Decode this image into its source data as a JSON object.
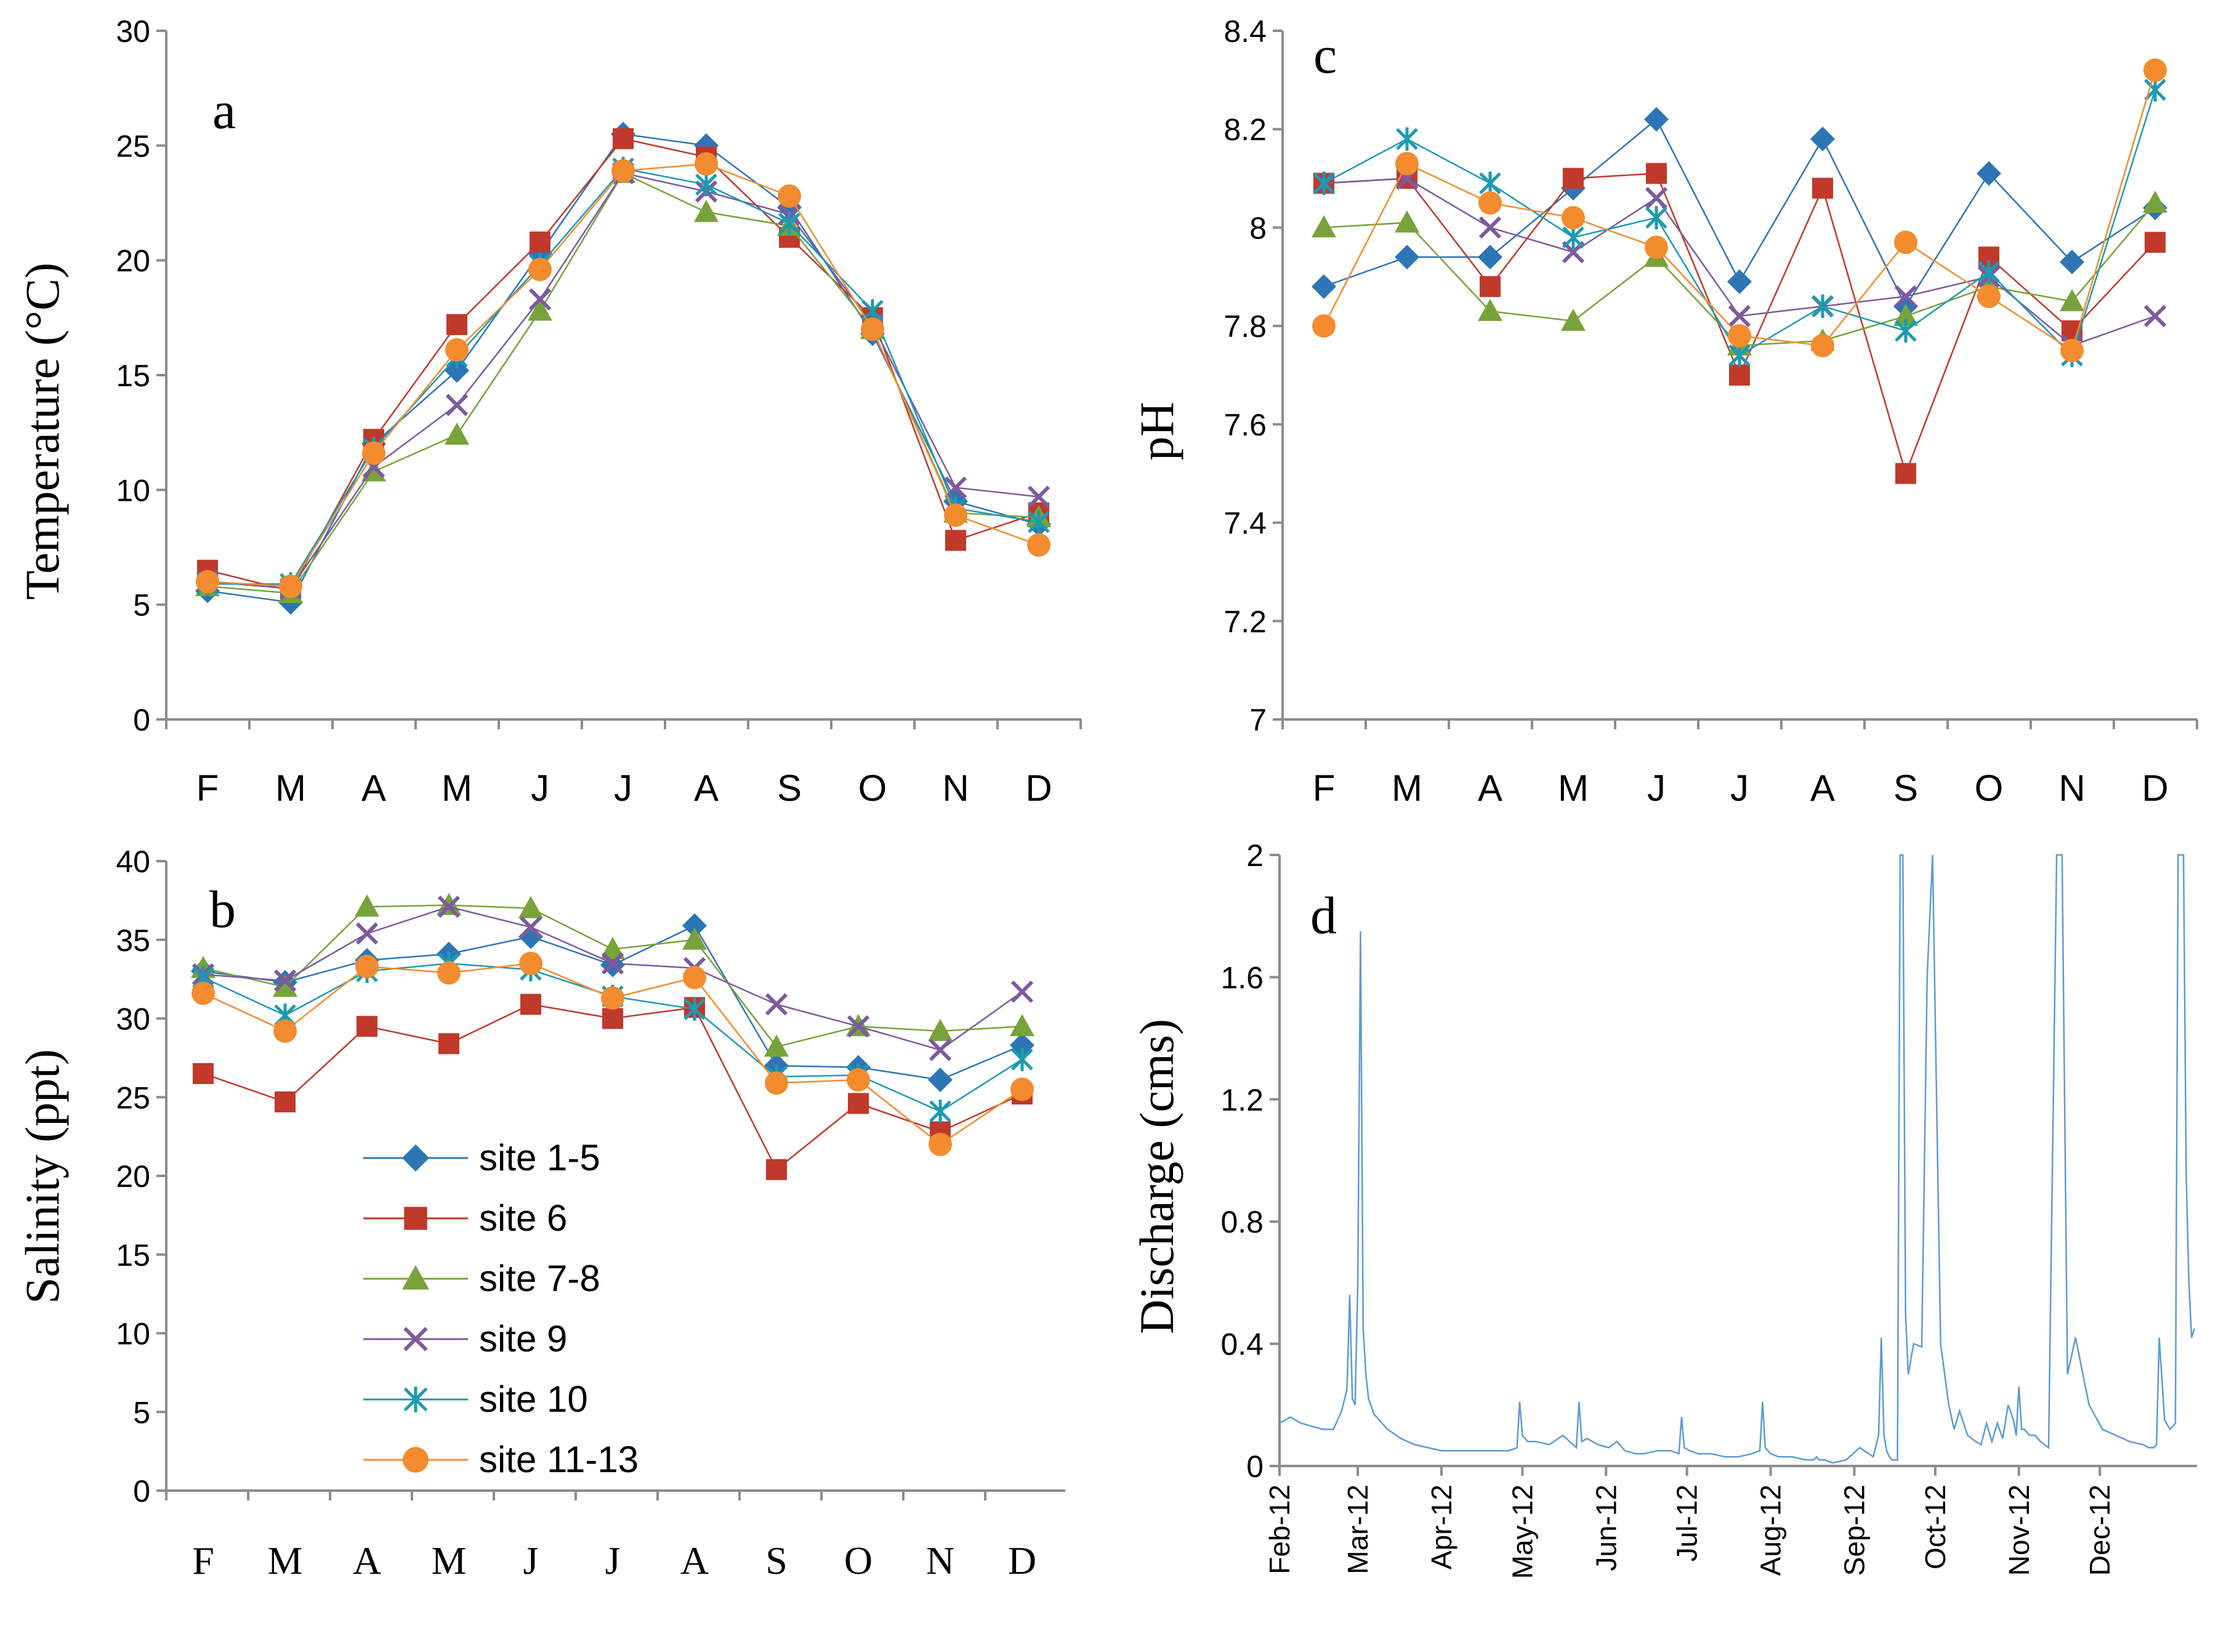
{
  "colors": {
    "site 1-5": "#2e75b6",
    "site 6": "#c0392b",
    "site 7-8": "#77a33a",
    "site 9": "#7d5a9e",
    "site 10": "#1b9ab2",
    "site 11-13": "#f28c2e"
  },
  "markers": {
    "site 1-5": "diamond",
    "site 6": "square",
    "site 7-8": "triangle",
    "site 9": "cross",
    "site 10": "star",
    "site 11-13": "circle"
  },
  "chart_data": [
    {
      "panel": "a",
      "type": "line",
      "letter": "a",
      "ylabel": "Temperature  (°C)",
      "ylim": [
        0,
        30
      ],
      "yticks": [
        "0",
        "5",
        "10",
        "15",
        "20",
        "25",
        "30"
      ],
      "categories": [
        "F",
        "M",
        "A",
        "M",
        "J",
        "J",
        "A",
        "S",
        "O",
        "N",
        "D"
      ],
      "series": [
        {
          "name": "site 1-5",
          "values": [
            5.6,
            5.1,
            12.0,
            15.2,
            20.3,
            25.5,
            25.0,
            22.3,
            16.8,
            9.5,
            8.5
          ]
        },
        {
          "name": "site 6",
          "values": [
            6.5,
            5.6,
            12.2,
            17.2,
            20.8,
            25.3,
            24.5,
            21.0,
            17.5,
            7.8,
            9.0
          ]
        },
        {
          "name": "site 7-8",
          "values": [
            5.8,
            5.5,
            10.8,
            12.4,
            17.8,
            23.8,
            22.1,
            21.5,
            17.0,
            9.0,
            8.8
          ]
        },
        {
          "name": "site 9",
          "values": [
            6.0,
            5.7,
            11.0,
            13.7,
            18.3,
            23.8,
            23.0,
            22.0,
            17.2,
            10.1,
            9.7
          ]
        },
        {
          "name": "site 10",
          "values": [
            5.9,
            5.9,
            11.8,
            15.8,
            19.8,
            24.0,
            23.3,
            21.6,
            17.8,
            9.2,
            8.6
          ]
        },
        {
          "name": "site 11-13",
          "values": [
            6.0,
            5.8,
            11.6,
            16.1,
            19.6,
            23.9,
            24.2,
            22.8,
            17.0,
            8.9,
            7.6
          ]
        }
      ]
    },
    {
      "panel": "c",
      "type": "line",
      "letter": "c",
      "ylabel": "pH",
      "ylim": [
        7,
        8.4
      ],
      "yticks": [
        "7",
        "7.2",
        "7.4",
        "7.6",
        "7.8",
        "8",
        "8.2",
        "8.4"
      ],
      "categories": [
        "F",
        "M",
        "A",
        "M",
        "J",
        "J",
        "A",
        "S",
        "O",
        "N",
        "D"
      ],
      "series": [
        {
          "name": "site 1-5",
          "values": [
            7.88,
            7.94,
            7.94,
            8.08,
            8.22,
            7.89,
            8.18,
            7.84,
            8.11,
            7.93,
            8.04
          ]
        },
        {
          "name": "site 6",
          "values": [
            8.09,
            8.1,
            7.88,
            8.1,
            8.11,
            7.7,
            8.08,
            7.5,
            7.94,
            7.79,
            7.97
          ]
        },
        {
          "name": "site 7-8",
          "values": [
            8.0,
            8.01,
            7.83,
            7.81,
            7.94,
            7.76,
            7.77,
            7.82,
            7.88,
            7.85,
            8.05
          ]
        },
        {
          "name": "site 9",
          "values": [
            8.09,
            8.1,
            8.0,
            7.95,
            8.06,
            7.82,
            7.84,
            7.86,
            7.9,
            7.76,
            7.82
          ]
        },
        {
          "name": "site 10",
          "values": [
            8.09,
            8.18,
            8.09,
            7.98,
            8.02,
            7.74,
            7.84,
            7.79,
            7.91,
            7.74,
            8.28
          ]
        },
        {
          "name": "site 11-13",
          "values": [
            7.8,
            8.13,
            8.05,
            8.02,
            7.96,
            7.78,
            7.76,
            7.97,
            7.86,
            7.75,
            8.32
          ]
        }
      ]
    },
    {
      "panel": "b",
      "type": "line",
      "letter": "b",
      "ylabel": "Salinity (ppt)",
      "ylim": [
        0,
        40
      ],
      "yticks": [
        "0",
        "5",
        "10",
        "15",
        "20",
        "25",
        "30",
        "35",
        "40"
      ],
      "categories": [
        "F",
        "M",
        "A",
        "M",
        "J",
        "J",
        "A",
        "S",
        "O",
        "N",
        "D"
      ],
      "legend": [
        "site 1-5",
        "site 6",
        "site 7-8",
        "site 9",
        "site 10",
        "site 11-13"
      ],
      "series": [
        {
          "name": "site 1-5",
          "values": [
            33.0,
            32.3,
            33.7,
            34.1,
            35.2,
            33.4,
            35.9,
            27.0,
            26.9,
            26.1,
            28.3
          ]
        },
        {
          "name": "site 6",
          "values": [
            26.5,
            24.7,
            29.5,
            28.4,
            30.9,
            30.0,
            30.7,
            20.4,
            24.6,
            22.8,
            25.2
          ]
        },
        {
          "name": "site 7-8",
          "values": [
            33.2,
            32.0,
            37.1,
            37.2,
            37.0,
            34.4,
            35.0,
            28.2,
            29.5,
            29.2,
            29.5
          ]
        },
        {
          "name": "site 9",
          "values": [
            32.8,
            32.4,
            35.4,
            37.1,
            35.8,
            33.5,
            33.2,
            30.9,
            29.5,
            28.0,
            31.7
          ]
        },
        {
          "name": "site 10",
          "values": [
            32.6,
            30.2,
            33.0,
            33.5,
            33.1,
            31.4,
            30.6,
            26.3,
            26.4,
            24.1,
            27.4
          ]
        },
        {
          "name": "site 11-13",
          "values": [
            31.6,
            29.2,
            33.3,
            32.9,
            33.5,
            31.3,
            32.6,
            25.9,
            26.1,
            22.0,
            25.5
          ]
        }
      ]
    },
    {
      "panel": "d",
      "type": "line",
      "letter": "d",
      "ylabel": "Discharge (cms)",
      "ylim": [
        0,
        2
      ],
      "yticks": [
        "0",
        "0.4",
        "0.8",
        "1.2",
        "1.6",
        "2"
      ],
      "xticks": [
        "Feb-12",
        "Mar-12",
        "Apr-12",
        "May-12",
        "Jun-12",
        "Jul-12",
        "Aug-12",
        "Sep-12",
        "Oct-12",
        "Nov-12",
        "Dec-12"
      ],
      "series_color": "#5b9bd5",
      "x": [
        0,
        4,
        8,
        12,
        16,
        20,
        23,
        25,
        26,
        27,
        28,
        29,
        30,
        31,
        32,
        33,
        35,
        40,
        45,
        50,
        55,
        60,
        65,
        70,
        75,
        80,
        85,
        88,
        89,
        90,
        92,
        95,
        100,
        105,
        110,
        111,
        112,
        114,
        118,
        122,
        125,
        128,
        132,
        135,
        140,
        145,
        148,
        149,
        150,
        152,
        155,
        160,
        165,
        170,
        175,
        178,
        179,
        180,
        182,
        185,
        190,
        195,
        198,
        199,
        200,
        201,
        202,
        205,
        210,
        215,
        220,
        222,
        223,
        224,
        225,
        226,
        227,
        228,
        229,
        230,
        231,
        232,
        233,
        235,
        238,
        240,
        242,
        245,
        248,
        250,
        252,
        255,
        258,
        260,
        262,
        264,
        266,
        268,
        270,
        272,
        273,
        274,
        275,
        276,
        278,
        280,
        282,
        285,
        288,
        290,
        292,
        295,
        300,
        305,
        310,
        315,
        320,
        322,
        323,
        324,
        325,
        326,
        328,
        330,
        332,
        333,
        334,
        335,
        336,
        337,
        338,
        339
      ],
      "values": [
        0.14,
        0.16,
        0.14,
        0.13,
        0.12,
        0.12,
        0.18,
        0.25,
        0.56,
        0.22,
        0.2,
        0.6,
        1.75,
        0.45,
        0.3,
        0.22,
        0.17,
        0.12,
        0.09,
        0.07,
        0.06,
        0.05,
        0.05,
        0.05,
        0.05,
        0.05,
        0.05,
        0.06,
        0.21,
        0.1,
        0.08,
        0.08,
        0.07,
        0.1,
        0.06,
        0.21,
        0.08,
        0.09,
        0.07,
        0.06,
        0.08,
        0.05,
        0.04,
        0.04,
        0.05,
        0.05,
        0.04,
        0.16,
        0.06,
        0.05,
        0.04,
        0.04,
        0.03,
        0.03,
        0.04,
        0.05,
        0.21,
        0.06,
        0.04,
        0.03,
        0.03,
        0.02,
        0.02,
        0.03,
        0.02,
        0.02,
        0.02,
        0.01,
        0.02,
        0.06,
        0.03,
        0.1,
        0.42,
        0.1,
        0.05,
        0.03,
        0.02,
        0.02,
        0.02,
        2.0,
        2.0,
        0.5,
        0.3,
        0.4,
        0.39,
        1.6,
        2.0,
        0.4,
        0.2,
        0.12,
        0.18,
        0.1,
        0.08,
        0.07,
        0.14,
        0.08,
        0.14,
        0.09,
        0.2,
        0.15,
        0.1,
        0.26,
        0.12,
        0.12,
        0.1,
        0.1,
        0.08,
        0.06,
        2.0,
        2.0,
        0.3,
        0.42,
        0.2,
        0.12,
        0.1,
        0.08,
        0.07,
        0.06,
        0.06,
        0.06,
        0.07,
        0.42,
        0.15,
        0.12,
        0.14,
        2.0,
        2.0,
        2.0,
        0.95,
        0.6,
        0.42,
        0.45
      ]
    }
  ]
}
